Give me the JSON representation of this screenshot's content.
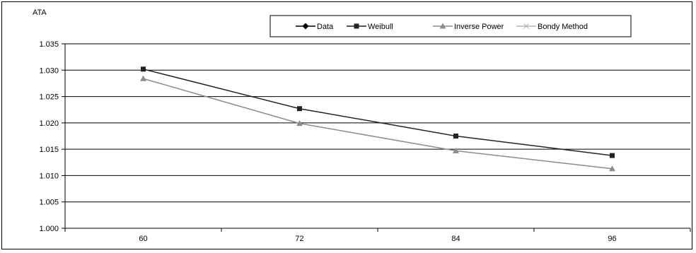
{
  "chart_data": {
    "type": "line",
    "title": "",
    "xlabel": "",
    "ylabel": "ATA",
    "categories": [
      "60",
      "72",
      "84",
      "96"
    ],
    "ylim": [
      1.0,
      1.035
    ],
    "yticks": [
      "1.000",
      "1.005",
      "1.010",
      "1.015",
      "1.020",
      "1.025",
      "1.030",
      "1.035"
    ],
    "grid": true,
    "legend_position": "top",
    "series": [
      {
        "name": "Data",
        "marker": "diamond",
        "color": "#000000",
        "values": [
          null,
          null,
          null,
          null
        ]
      },
      {
        "name": "Weibull",
        "marker": "square",
        "color": "#222222",
        "values": [
          1.0302,
          1.0227,
          1.0175,
          1.0138
        ]
      },
      {
        "name": "Inverse Power",
        "marker": "triangle",
        "color": "#8c8c8c",
        "values": [
          1.0284,
          1.0199,
          1.0147,
          1.0113
        ]
      },
      {
        "name": "Bondy Method",
        "marker": "x",
        "color": "#b4b4b4",
        "values": [
          null,
          null,
          null,
          null
        ]
      }
    ]
  }
}
